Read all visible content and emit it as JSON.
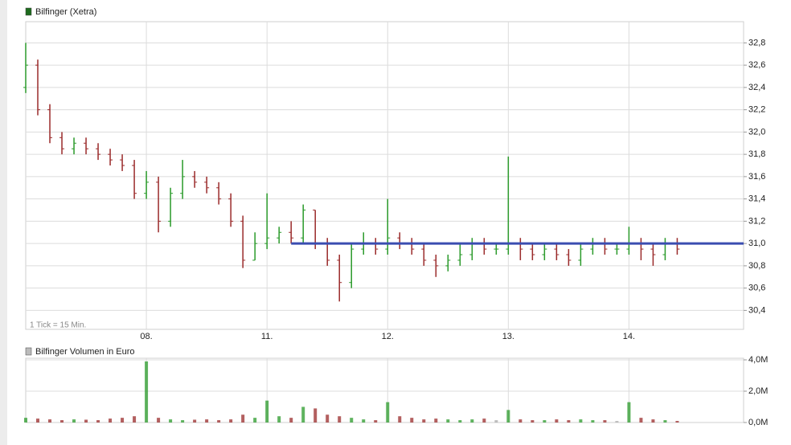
{
  "chart_data": [
    {
      "type": "ohlc",
      "title": "Bilfinger (Xetra)",
      "color": "#1e6b1e",
      "annotation": "1 Tick = 15 Min.",
      "up_color": "#2a9a2a",
      "down_color": "#9a2a2a",
      "x": [
        -1.0,
        -0.9,
        -0.8,
        -0.7,
        -0.6,
        -0.5,
        -0.4,
        -0.3,
        -0.2,
        -0.1,
        0.0,
        0.1,
        0.2,
        0.3,
        0.4,
        0.5,
        0.6,
        0.7,
        0.8,
        0.9,
        1.0,
        1.1,
        1.2,
        1.3,
        1.4,
        1.5,
        1.6,
        1.7,
        1.8,
        1.9,
        2.0,
        2.1,
        2.2,
        2.3,
        2.4,
        2.5,
        2.6,
        2.7,
        2.8,
        2.9,
        3.0,
        3.1,
        3.2,
        3.3,
        3.4,
        3.5,
        3.6,
        3.7,
        3.8,
        3.9,
        4.0,
        4.1,
        4.2,
        4.3,
        4.4
      ],
      "open": [
        32.4,
        32.6,
        32.2,
        31.95,
        31.85,
        31.9,
        31.85,
        31.8,
        31.75,
        31.7,
        31.45,
        31.55,
        31.2,
        31.45,
        31.6,
        31.55,
        31.5,
        31.4,
        31.2,
        30.85,
        31.0,
        31.05,
        31.1,
        31.05,
        31.3,
        31.0,
        30.85,
        30.65,
        30.95,
        31.0,
        30.95,
        31.05,
        31.0,
        30.95,
        30.85,
        30.8,
        30.85,
        30.9,
        31.0,
        30.95,
        30.95,
        31.0,
        30.95,
        30.9,
        30.95,
        30.9,
        30.85,
        30.95,
        31.0,
        30.95,
        30.95,
        31.0,
        30.95,
        30.9,
        31.0
      ],
      "high": [
        32.8,
        32.65,
        32.25,
        32.0,
        31.95,
        31.95,
        31.9,
        31.85,
        31.8,
        31.75,
        31.65,
        31.6,
        31.5,
        31.75,
        31.65,
        31.6,
        31.55,
        31.45,
        31.25,
        31.1,
        31.45,
        31.15,
        31.2,
        31.35,
        31.3,
        31.05,
        30.9,
        31.0,
        31.1,
        31.05,
        31.4,
        31.1,
        31.05,
        31.0,
        30.9,
        30.9,
        31.0,
        31.05,
        31.05,
        31.0,
        31.78,
        31.05,
        31.0,
        31.0,
        31.0,
        30.95,
        31.0,
        31.05,
        31.05,
        31.0,
        31.15,
        31.05,
        31.0,
        31.05,
        31.05
      ],
      "low": [
        32.35,
        32.15,
        31.9,
        31.8,
        31.8,
        31.8,
        31.75,
        31.7,
        31.65,
        31.4,
        31.4,
        31.1,
        31.15,
        31.4,
        31.5,
        31.45,
        31.35,
        31.15,
        30.78,
        30.85,
        30.95,
        31.0,
        31.0,
        31.0,
        30.95,
        30.8,
        30.48,
        30.6,
        30.9,
        30.9,
        30.9,
        30.95,
        30.9,
        30.8,
        30.7,
        30.75,
        30.8,
        30.85,
        30.9,
        30.9,
        30.9,
        30.85,
        30.85,
        30.85,
        30.85,
        30.8,
        30.8,
        30.9,
        30.9,
        30.9,
        30.9,
        30.85,
        30.8,
        30.85,
        30.9
      ],
      "close": [
        32.6,
        32.2,
        31.95,
        31.85,
        31.9,
        31.85,
        31.8,
        31.75,
        31.7,
        31.45,
        31.55,
        31.2,
        31.45,
        31.6,
        31.55,
        31.5,
        31.4,
        31.2,
        30.85,
        31.0,
        31.05,
        31.1,
        31.05,
        31.3,
        31.0,
        30.85,
        30.65,
        30.95,
        31.0,
        30.95,
        31.05,
        31.0,
        30.95,
        30.85,
        30.8,
        30.85,
        30.9,
        31.0,
        30.95,
        30.95,
        31.0,
        30.95,
        30.9,
        30.95,
        30.9,
        30.85,
        30.95,
        31.0,
        30.95,
        30.95,
        31.0,
        30.95,
        30.9,
        31.0,
        30.95
      ],
      "hline": {
        "value": 31.0,
        "x": [
          1.2,
          4.95
        ],
        "color": "#3a4db0"
      },
      "xlim": [
        -1.0,
        4.95
      ],
      "xticks": [
        {
          "value": 0,
          "label": "08."
        },
        {
          "value": 1,
          "label": "11."
        },
        {
          "value": 2,
          "label": "12."
        },
        {
          "value": 3,
          "label": "13."
        },
        {
          "value": 4,
          "label": "14."
        }
      ],
      "ylim": [
        30.23,
        32.99
      ],
      "yticks": [
        {
          "value": 30.4,
          "label": "30,4"
        },
        {
          "value": 30.6,
          "label": "30,6"
        },
        {
          "value": 30.8,
          "label": "30,8"
        },
        {
          "value": 31.0,
          "label": "31,0"
        },
        {
          "value": 31.2,
          "label": "31,2"
        },
        {
          "value": 31.4,
          "label": "31,4"
        },
        {
          "value": 31.6,
          "label": "31,6"
        },
        {
          "value": 31.8,
          "label": "31,8"
        },
        {
          "value": 32.0,
          "label": "32,0"
        },
        {
          "value": 32.2,
          "label": "32,2"
        },
        {
          "value": 32.4,
          "label": "32,4"
        },
        {
          "value": 32.6,
          "label": "32,6"
        },
        {
          "value": 32.8,
          "label": "32,8"
        }
      ],
      "grid": true
    },
    {
      "type": "bar",
      "title": "Bilfinger Volumen in Euro",
      "color": "#bbbbbb",
      "flat_color": "#aaaaaa",
      "x": [
        -1.0,
        -0.9,
        -0.8,
        -0.7,
        -0.6,
        -0.5,
        -0.4,
        -0.3,
        -0.2,
        -0.1,
        0.0,
        0.1,
        0.2,
        0.3,
        0.4,
        0.5,
        0.6,
        0.7,
        0.8,
        0.9,
        1.0,
        1.1,
        1.2,
        1.3,
        1.4,
        1.5,
        1.6,
        1.7,
        1.8,
        1.9,
        2.0,
        2.1,
        2.2,
        2.3,
        2.4,
        2.5,
        2.6,
        2.7,
        2.8,
        2.9,
        3.0,
        3.1,
        3.2,
        3.3,
        3.4,
        3.5,
        3.6,
        3.7,
        3.8,
        3.9,
        4.0,
        4.1,
        4.2,
        4.3,
        4.4
      ],
      "values": [
        300000,
        250000,
        200000,
        150000,
        200000,
        180000,
        150000,
        250000,
        300000,
        400000,
        3900000,
        300000,
        200000,
        150000,
        180000,
        200000,
        150000,
        200000,
        500000,
        300000,
        1400000,
        400000,
        300000,
        1000000,
        900000,
        500000,
        400000,
        300000,
        200000,
        150000,
        1300000,
        400000,
        300000,
        200000,
        250000,
        200000,
        150000,
        200000,
        250000,
        150000,
        800000,
        200000,
        150000,
        150000,
        200000,
        150000,
        200000,
        150000,
        150000,
        100000,
        1300000,
        300000,
        200000,
        150000,
        100000
      ],
      "ylim": [
        0,
        4000000
      ],
      "yticks": [
        {
          "value": 0,
          "label": "0,0M"
        },
        {
          "value": 2000000,
          "label": "2,0M"
        },
        {
          "value": 4000000,
          "label": "4,0M"
        }
      ],
      "grid": true
    }
  ]
}
